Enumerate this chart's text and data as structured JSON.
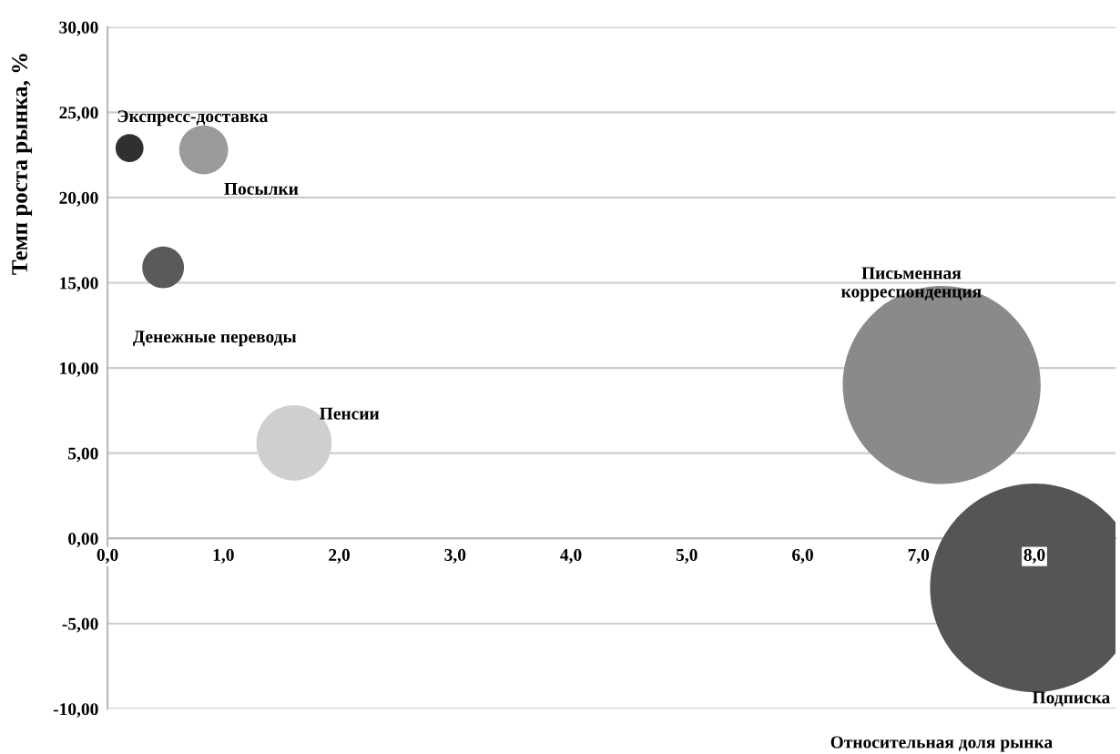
{
  "chart_data": {
    "type": "bubble",
    "xlabel": "Относительная доля рынка",
    "ylabel": "Темп роста рынка, %",
    "xlim": [
      0,
      8.7
    ],
    "xticks": [
      {
        "value": 0,
        "label": "0,0"
      },
      {
        "value": 1,
        "label": "1,0"
      },
      {
        "value": 2,
        "label": "2,0"
      },
      {
        "value": 3,
        "label": "3,0"
      },
      {
        "value": 4,
        "label": "4,0"
      },
      {
        "value": 5,
        "label": "5,0"
      },
      {
        "value": 6,
        "label": "6,0"
      },
      {
        "value": 7,
        "label": "7,0"
      },
      {
        "value": 8,
        "label": "8,0"
      }
    ],
    "ylim": [
      -10,
      30
    ],
    "yticks": [
      {
        "value": -10,
        "label": "-10,00"
      },
      {
        "value": -5,
        "label": "-5,00"
      },
      {
        "value": 0,
        "label": "0,00"
      },
      {
        "value": 5,
        "label": "5,00"
      },
      {
        "value": 10,
        "label": "10,00"
      },
      {
        "value": 15,
        "label": "15,00"
      },
      {
        "value": 20,
        "label": "20,00"
      },
      {
        "value": 25,
        "label": "25,00"
      },
      {
        "value": 30,
        "label": "30,00"
      }
    ],
    "grid": "y",
    "legend": false,
    "series": [
      {
        "name": "Экспресс-доставка",
        "color": "#303030",
        "x": [
          0.19
        ],
        "values": [
          22.9
        ],
        "sizes": [
          0.018
        ]
      },
      {
        "name": "Посылки",
        "color": "#9a9a9a",
        "x": [
          0.83
        ],
        "values": [
          22.8
        ],
        "sizes": [
          0.055
        ]
      },
      {
        "name": "Денежные переводы",
        "color": "#5a5a5a",
        "x": [
          0.48
        ],
        "values": [
          15.9
        ],
        "sizes": [
          0.04
        ]
      },
      {
        "name": "Пенсии",
        "color": "#cfcfcf",
        "x": [
          1.61
        ],
        "values": [
          5.6
        ],
        "sizes": [
          0.13
        ]
      },
      {
        "name": "Письменная\nкорреспонденция",
        "color": "#8a8a8a",
        "x": [
          7.2
        ],
        "values": [
          9.0
        ],
        "sizes": [
          0.9
        ]
      },
      {
        "name": "Подписка",
        "color": "#555555",
        "x": [
          8.0
        ],
        "values": [
          -2.9
        ],
        "sizes": [
          1.0
        ]
      }
    ]
  }
}
